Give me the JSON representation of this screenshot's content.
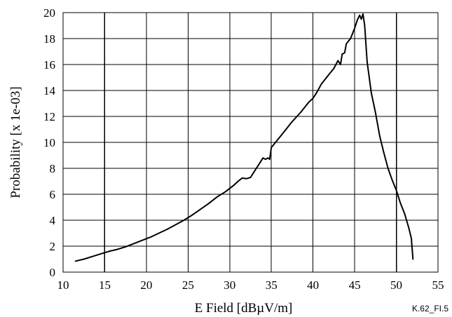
{
  "chart_data": {
    "type": "line",
    "title": "",
    "xlabel": "E Field [dBµV/m]",
    "ylabel": "Probability [x 1e-03]",
    "xlim": [
      10,
      55
    ],
    "ylim": [
      0,
      20
    ],
    "x_ticks": [
      "10",
      "15",
      "20",
      "25",
      "30",
      "35",
      "40",
      "45",
      "50",
      "55"
    ],
    "y_ticks": [
      "0",
      "2",
      "4",
      "6",
      "8",
      "10",
      "12",
      "14",
      "16",
      "18",
      "20"
    ],
    "grid": true,
    "legend": "none",
    "series": [
      {
        "x": [
          11.5,
          12.5,
          13.5,
          14.5,
          15.5,
          16.5,
          17.5,
          18.5,
          19.5,
          20.5,
          21.5,
          22.5,
          23.5,
          24.5,
          25.5,
          26.5,
          27.5,
          28.5,
          29.5,
          30.5,
          31.0,
          31.5,
          32.0,
          32.5,
          33.0,
          33.5,
          34.0,
          34.3,
          34.6,
          34.8,
          35.0,
          35.5,
          36.5,
          37.5,
          38.5,
          39.5,
          40.0,
          40.5,
          41.0,
          41.5,
          42.0,
          42.5,
          43.0,
          43.3,
          43.5,
          43.8,
          44.0,
          44.5,
          45.0,
          45.3,
          45.6,
          45.8,
          46.0,
          46.2,
          46.5,
          47.0,
          47.5,
          48.0,
          48.5,
          49.0,
          49.5,
          50.0,
          50.5,
          51.0,
          51.5,
          51.8,
          52.0
        ],
        "y": [
          0.85,
          1.0,
          1.2,
          1.4,
          1.6,
          1.75,
          1.95,
          2.2,
          2.45,
          2.7,
          3.0,
          3.3,
          3.65,
          4.0,
          4.4,
          4.85,
          5.3,
          5.8,
          6.2,
          6.7,
          7.0,
          7.25,
          7.2,
          7.3,
          7.8,
          8.3,
          8.8,
          8.7,
          8.8,
          8.7,
          9.6,
          10.0,
          10.8,
          11.6,
          12.3,
          13.1,
          13.4,
          13.9,
          14.5,
          14.9,
          15.3,
          15.7,
          16.3,
          16.0,
          16.8,
          16.9,
          17.6,
          18.0,
          18.8,
          19.4,
          19.8,
          19.5,
          19.9,
          19.0,
          16.2,
          13.8,
          12.3,
          10.5,
          9.2,
          8.0,
          7.1,
          6.3,
          5.3,
          4.5,
          3.4,
          2.6,
          1.0
        ]
      }
    ],
    "figure_id": "K.62_FI.5"
  }
}
